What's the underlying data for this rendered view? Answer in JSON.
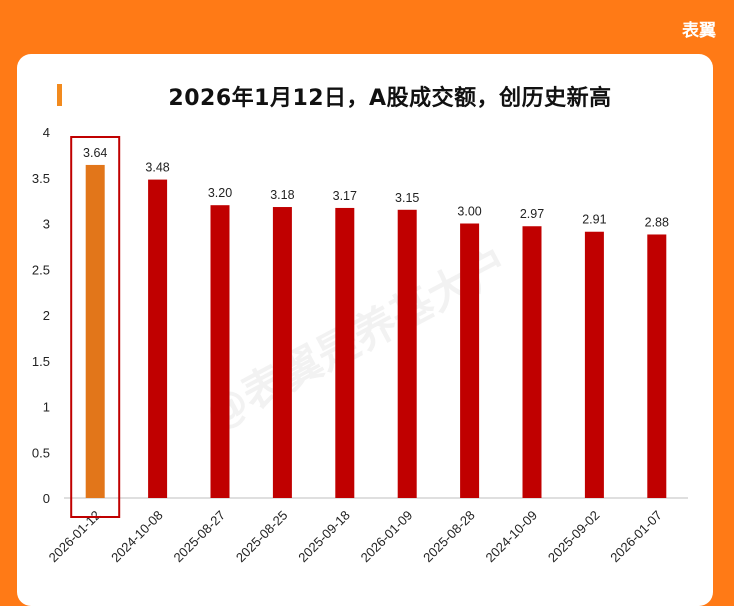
{
  "brand": "表翼",
  "watermark": "@表翼是养基大户",
  "chart_data": {
    "type": "bar",
    "title": "2026年1月12日，A股成交额，创历史新高",
    "categories": [
      "2026-01-12",
      "2024-10-08",
      "2025-08-27",
      "2025-08-25",
      "2025-09-18",
      "2026-01-09",
      "2025-08-28",
      "2024-10-09",
      "2025-09-02",
      "2026-01-07"
    ],
    "values": [
      3.64,
      3.48,
      3.2,
      3.18,
      3.17,
      3.15,
      3.0,
      2.97,
      2.91,
      2.88
    ],
    "value_labels": [
      "3.64",
      "3.48",
      "3.20",
      "3.18",
      "3.17",
      "3.15",
      "3.00",
      "2.97",
      "2.91",
      "2.88"
    ],
    "y_ticks": [
      "0",
      "0.5",
      "1",
      "1.5",
      "2",
      "2.5",
      "3",
      "3.5",
      "4"
    ],
    "ylim": [
      0,
      4
    ],
    "grid": false,
    "highlight_index": 0,
    "colors": {
      "highlight": "#e2761a",
      "bar": "#c00000",
      "highlight_box": "#c00000"
    }
  }
}
